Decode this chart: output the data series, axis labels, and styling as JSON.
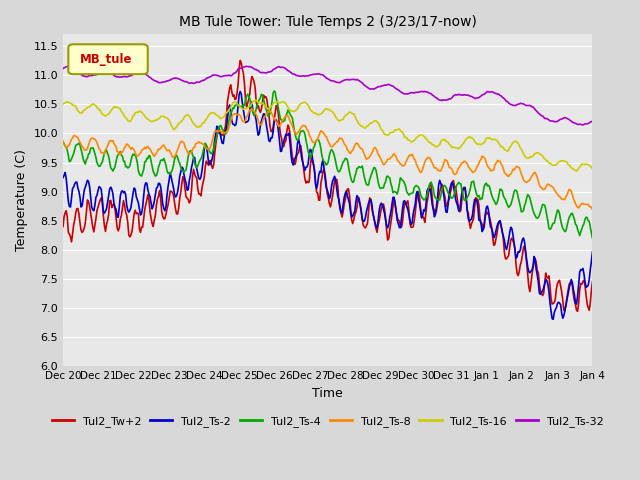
{
  "title": "MB Tule Tower: Tule Temps 2 (3/23/17-now)",
  "xlabel": "Time",
  "ylabel": "Temperature (C)",
  "ylim": [
    6.0,
    11.7
  ],
  "yticks": [
    6.0,
    6.5,
    7.0,
    7.5,
    8.0,
    8.5,
    9.0,
    9.5,
    10.0,
    10.5,
    11.0,
    11.5
  ],
  "legend_label": "MB_tule",
  "series_order": [
    "Tul2_Tw+2",
    "Tul2_Ts-2",
    "Tul2_Ts-4",
    "Tul2_Ts-8",
    "Tul2_Ts-16",
    "Tul2_Ts-32"
  ],
  "series": {
    "Tul2_Tw+2": {
      "color": "#cc0000",
      "lw": 1.2
    },
    "Tul2_Ts-2": {
      "color": "#0000cc",
      "lw": 1.2
    },
    "Tul2_Ts-4": {
      "color": "#00aa00",
      "lw": 1.2
    },
    "Tul2_Ts-8": {
      "color": "#ff8800",
      "lw": 1.2
    },
    "Tul2_Ts-16": {
      "color": "#cccc00",
      "lw": 1.2
    },
    "Tul2_Ts-32": {
      "color": "#aa00cc",
      "lw": 1.2
    }
  },
  "bg_color": "#d8d8d8",
  "plot_bg": "#e8e8e8",
  "x_start": 0,
  "x_end": 15.0,
  "xtick_labels": [
    "Dec 20",
    "Dec 21",
    "Dec 22",
    "Dec 23",
    "Dec 24",
    "Dec 25",
    "Dec 26",
    "Dec 27",
    "Dec 28",
    "Dec 29",
    "Dec 30",
    "Dec 31",
    "Jan 1",
    "Jan 2",
    "Jan 3",
    "Jan 4"
  ],
  "xtick_positions": [
    0,
    1,
    2,
    3,
    4,
    5,
    6,
    7,
    8,
    9,
    10,
    11,
    12,
    13,
    14,
    15
  ]
}
